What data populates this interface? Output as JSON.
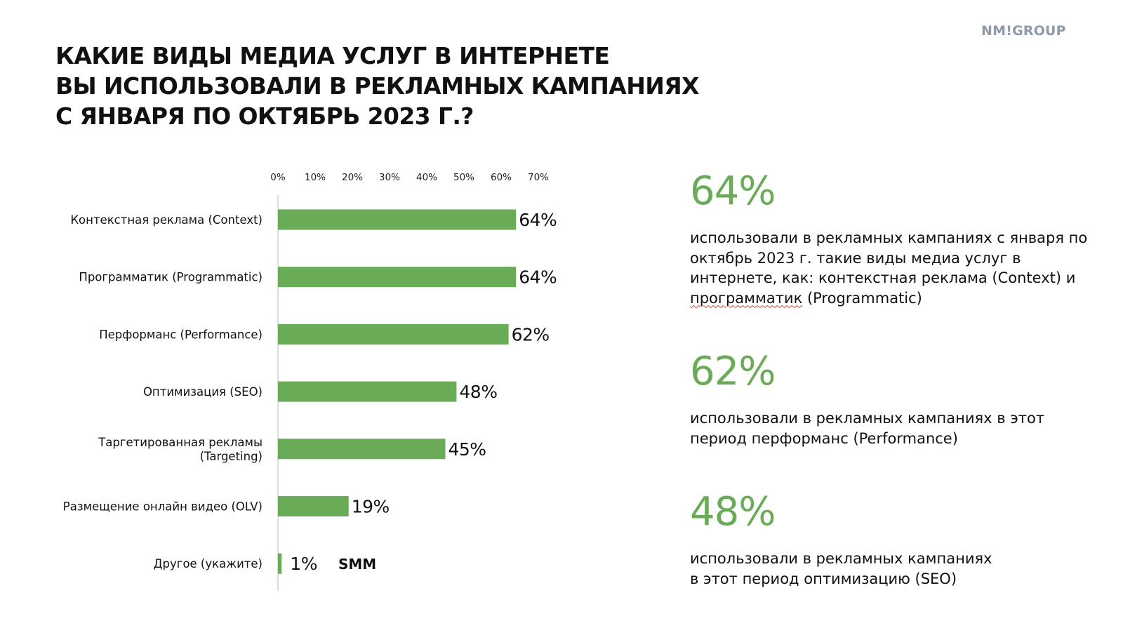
{
  "brand": {
    "logo": "NM!GROUP"
  },
  "title": {
    "lines": [
      "КАКИЕ ВИДЫ МЕДИА УСЛУГ В ИНТЕРНЕТЕ",
      "ВЫ ИСПОЛЬЗОВАЛИ В РЕКЛАМНЫХ КАМПАНИЯХ",
      "С ЯНВАРЯ ПО ОКТЯБРЬ 2023 Г.?"
    ]
  },
  "chart_data": {
    "type": "bar",
    "orientation": "horizontal",
    "categories": [
      "Контекстная реклама (Context)",
      "Программатик (Programmatic)",
      "Перформанс (Performance)",
      "Оптимизация (SEO)",
      "Таргетированная рекламы (Targeting)",
      "Размещение онлайн видео (OLV)",
      "Другое (укажите)"
    ],
    "category_lines": [
      [
        "Контекстная реклама (Context)"
      ],
      [
        "Программатик (Programmatic)"
      ],
      [
        "Перформанс (Performance)"
      ],
      [
        "Оптимизация (SEO)"
      ],
      [
        "Таргетированная рекламы",
        "(Targeting)"
      ],
      [
        "Размещение онлайн видео (OLV)"
      ],
      [
        "Другое (укажите)"
      ]
    ],
    "values": [
      64,
      64,
      62,
      48,
      45,
      19,
      1
    ],
    "data_labels": [
      "64%",
      "64%",
      "62%",
      "48%",
      "45%",
      "19%",
      "1%"
    ],
    "xlim": [
      0,
      70
    ],
    "x_ticks": [
      0,
      10,
      20,
      30,
      40,
      50,
      60,
      70
    ],
    "x_tick_labels": [
      "0%",
      "10%",
      "20%",
      "30%",
      "40%",
      "50%",
      "60%",
      "70%"
    ],
    "x_axis_position": "top",
    "grid": false,
    "bar_color": "#6aab57",
    "annotations": [
      {
        "category_index": 6,
        "text": "SMM"
      }
    ]
  },
  "stats": [
    {
      "value": "64%",
      "text_before": "использовали в рекламных кампаниях с января по октябрь 2023 г. такие виды медиа услуг в интернете, как: контекстная реклама (Context) и ",
      "text_underlined": "программатик",
      "text_after": " (Programmatic)"
    },
    {
      "value": "62%",
      "text": "использовали в рекламных кампаниях в этот период перформанс  (Performance)"
    },
    {
      "value": "48%",
      "text_line1": "использовали в рекламных кампаниях",
      "text_line2": "в этот период оптимизацию (SEO)"
    }
  ],
  "colors": {
    "accent": "#6aab57",
    "logo": "#8e9aa6",
    "text": "#111111"
  }
}
